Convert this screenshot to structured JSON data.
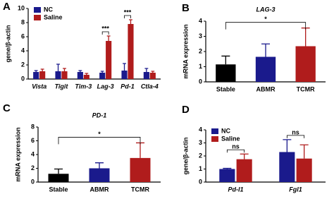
{
  "chart_data": [
    {
      "panel": "A",
      "type": "bar",
      "ylabel": "gene/β-actin",
      "italic_categories": true,
      "legend": "top-left",
      "categories": [
        "Vista",
        "Tigit",
        "Tim-3",
        "Lag-3",
        "Pd-1",
        "Ctla-4"
      ],
      "series": [
        {
          "name": "NC",
          "color": "#1a1a8c",
          "values": [
            1.0,
            1.1,
            1.0,
            0.9,
            1.2,
            1.0
          ],
          "errors": [
            0.2,
            1.0,
            0.2,
            0.2,
            1.0,
            0.5
          ]
        },
        {
          "name": "Saline",
          "color": "#b01c1c",
          "values": [
            1.1,
            1.1,
            0.6,
            5.4,
            7.8,
            0.9
          ],
          "errors": [
            0.3,
            0.4,
            0.2,
            0.7,
            0.6,
            0.2
          ]
        }
      ],
      "ylim": [
        0,
        10
      ],
      "yticks": [
        0,
        2,
        4,
        6,
        8,
        10
      ],
      "annotations": [
        {
          "text": "***",
          "category": 3
        },
        {
          "text": "***",
          "category": 4
        }
      ]
    },
    {
      "panel": "B",
      "type": "bar",
      "title": "LAG-3",
      "ylabel": "mRNA expression",
      "categories": [
        "Stable",
        "ABMR",
        "TCMR"
      ],
      "series": [
        {
          "colors": [
            "#000000",
            "#1a1a8c",
            "#b01c1c"
          ],
          "values": [
            1.15,
            1.65,
            2.35
          ],
          "errors": [
            0.55,
            0.85,
            1.2
          ]
        }
      ],
      "ylim": [
        0,
        4
      ],
      "yticks": [
        0,
        1,
        2,
        3,
        4
      ],
      "annotations": [
        {
          "text": "*",
          "between": [
            0,
            2
          ]
        }
      ]
    },
    {
      "panel": "C",
      "type": "bar",
      "title": "PD-1",
      "ylabel": "mRNA expression",
      "categories": [
        "Stable",
        "ABMR",
        "TCMR"
      ],
      "series": [
        {
          "colors": [
            "#000000",
            "#1a1a8c",
            "#b01c1c"
          ],
          "values": [
            1.2,
            2.0,
            3.5
          ],
          "errors": [
            0.7,
            0.8,
            2.2
          ]
        }
      ],
      "ylim": [
        0,
        8
      ],
      "yticks": [
        0,
        2,
        4,
        6,
        8
      ],
      "annotations": [
        {
          "text": "*",
          "between": [
            0,
            2
          ]
        }
      ]
    },
    {
      "panel": "D",
      "type": "bar",
      "ylabel": "gene/β-actin",
      "italic_categories": true,
      "legend": "top-left",
      "categories": [
        "Pd-l1",
        "Fgl1"
      ],
      "series": [
        {
          "name": "NC",
          "color": "#1a1a8c",
          "values": [
            1.0,
            2.3
          ],
          "errors": [
            0.05,
            0.95
          ]
        },
        {
          "name": "Saline",
          "color": "#b01c1c",
          "values": [
            1.75,
            1.8
          ],
          "errors": [
            0.4,
            1.05
          ]
        }
      ],
      "ylim": [
        0,
        4
      ],
      "yticks": [
        0,
        1,
        2,
        3,
        4
      ],
      "annotations": [
        {
          "text": "ns",
          "category": 0
        },
        {
          "text": "ns",
          "category": 1
        }
      ]
    }
  ]
}
